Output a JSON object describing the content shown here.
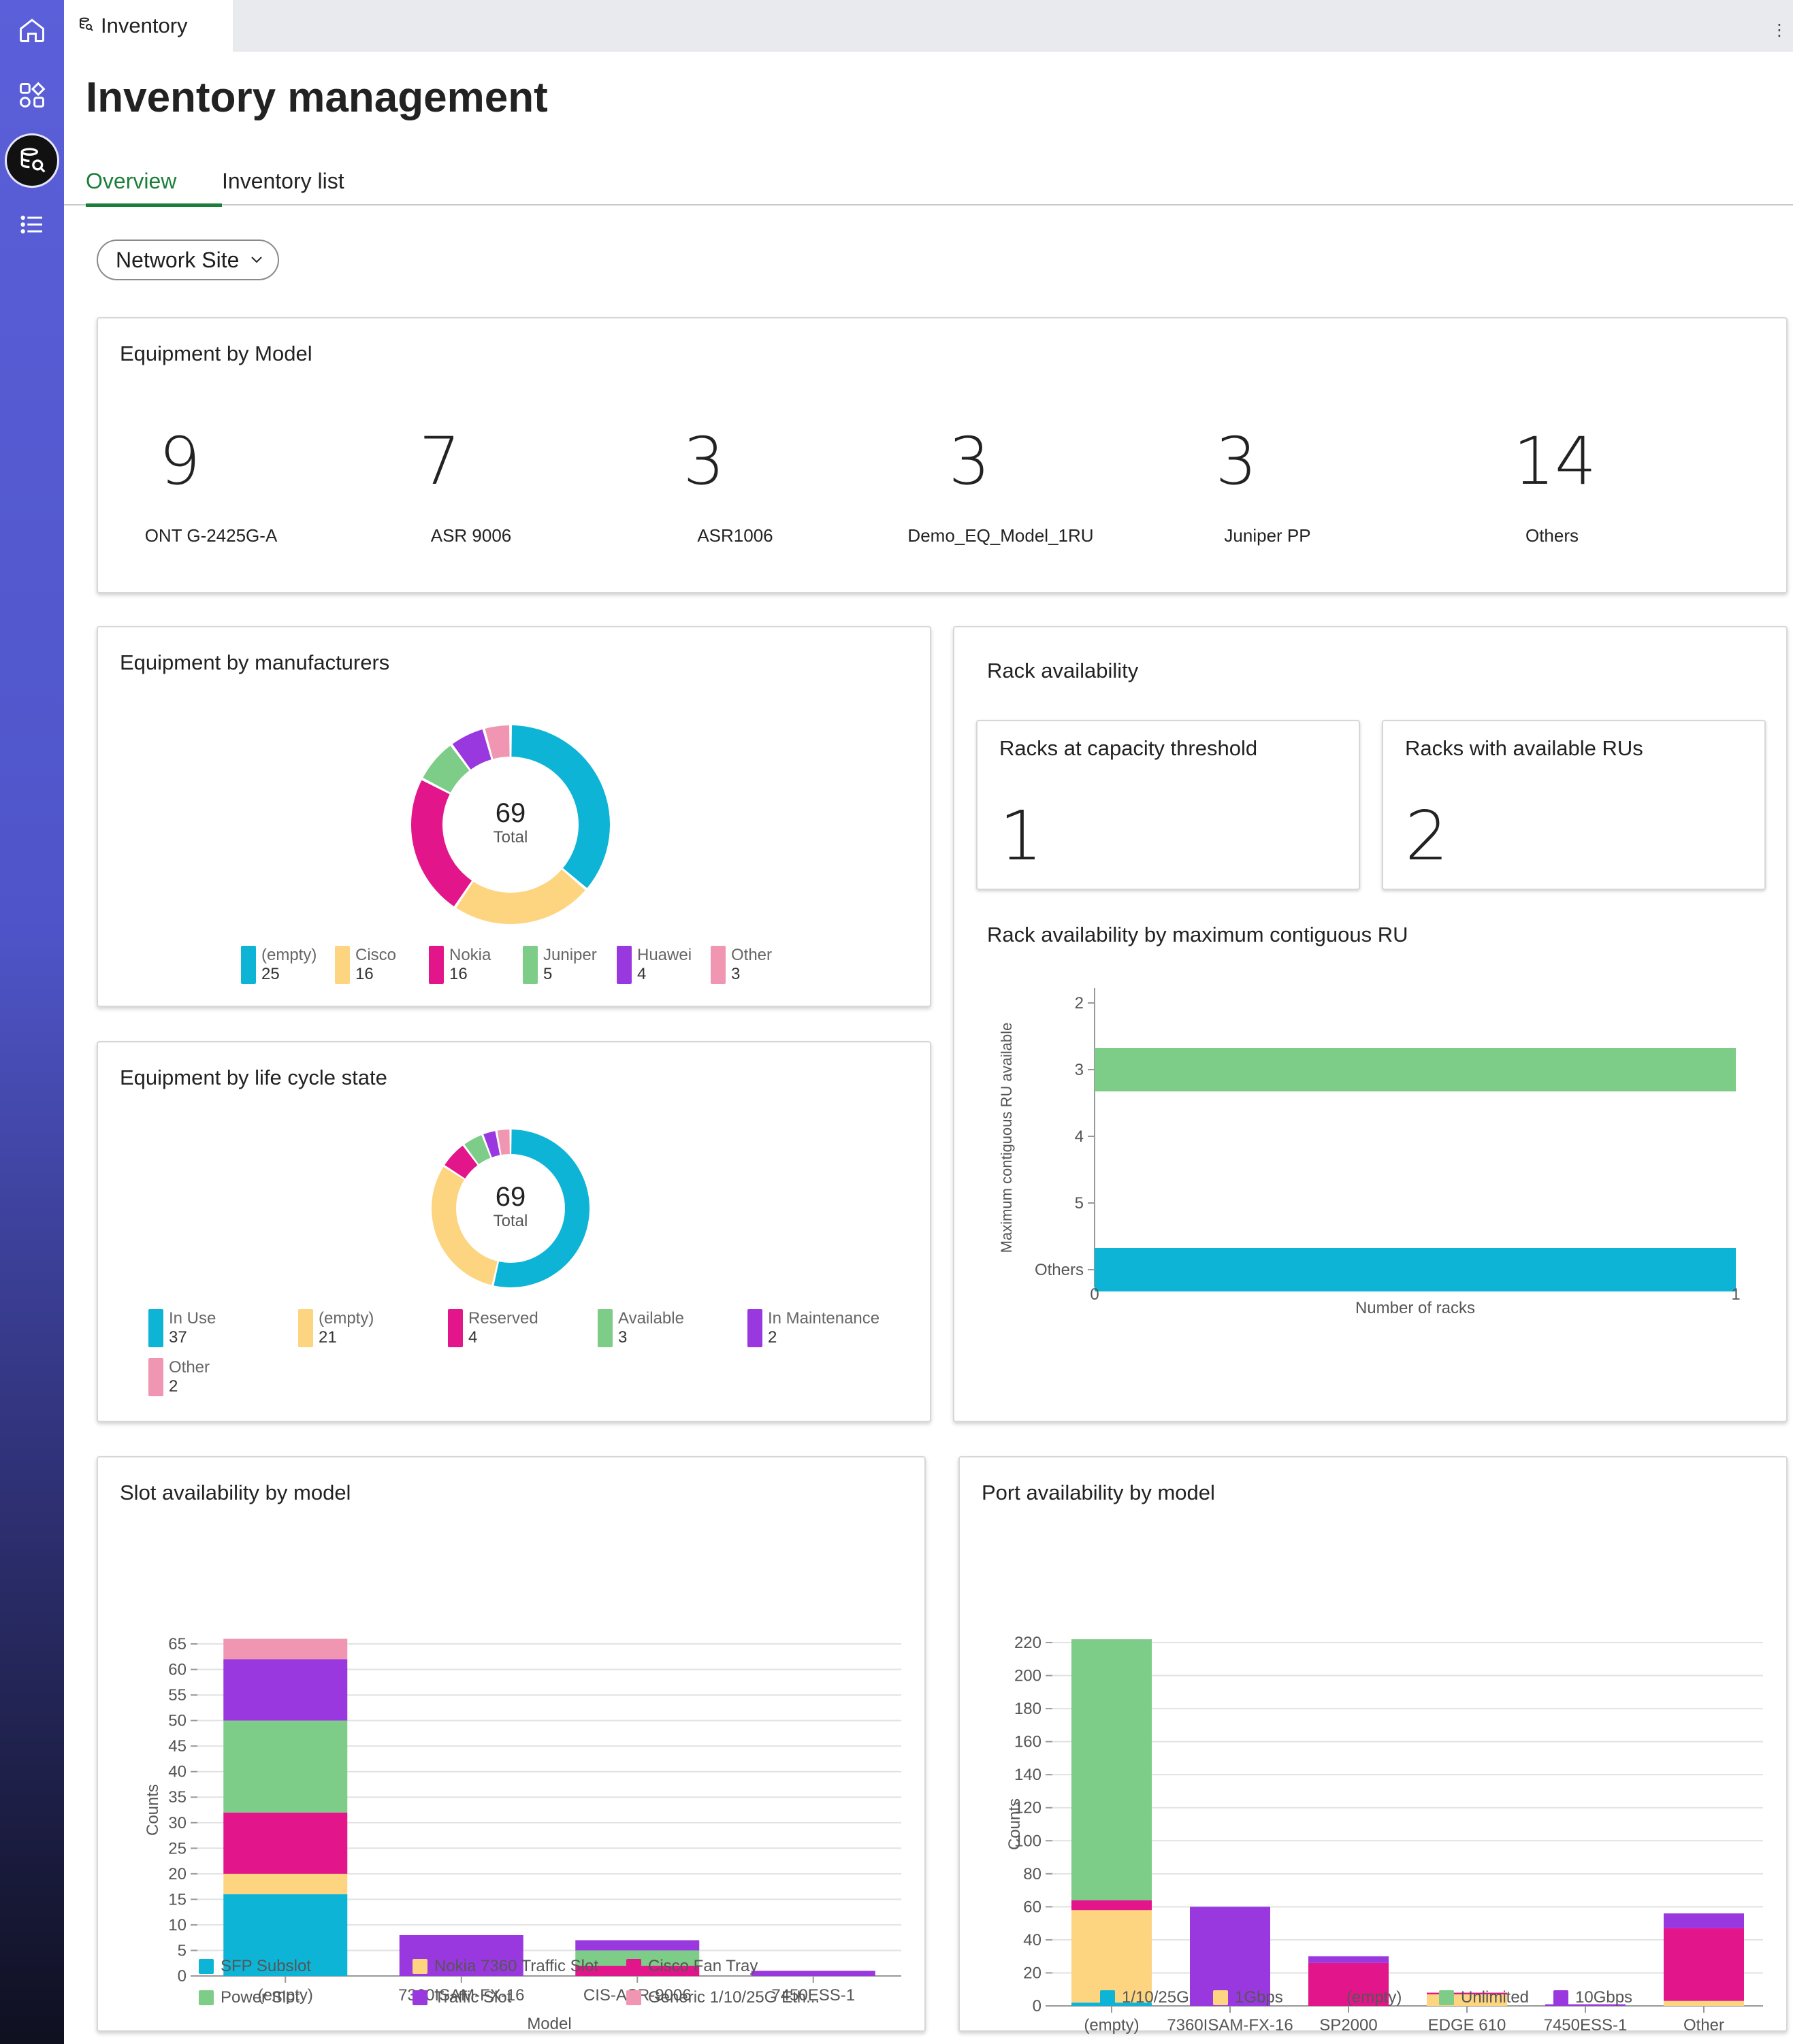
{
  "app_tab": {
    "label": "Inventory"
  },
  "page_title": "Inventory management",
  "tabs": [
    {
      "label": "Overview",
      "active": true
    },
    {
      "label": "Inventory list",
      "active": false
    }
  ],
  "filter": {
    "label": "Network Site"
  },
  "colors": {
    "cyan": "#0db4d6",
    "yellow": "#fdd47f",
    "magenta": "#e2168a",
    "green": "#7dcc87",
    "purple": "#9a38e0",
    "pink": "#f096b2",
    "accent_green": "#1b7f3a"
  },
  "equipment_by_model": {
    "title": "Equipment by Model",
    "items": [
      {
        "count": "9",
        "label": "ONT G-2425G-A"
      },
      {
        "count": "7",
        "label": "ASR 9006"
      },
      {
        "count": "3",
        "label": "ASR1006"
      },
      {
        "count": "3",
        "label": "Demo_EQ_Model_1RU"
      },
      {
        "count": "3",
        "label": "Juniper PP"
      },
      {
        "count": "14",
        "label": "Others"
      }
    ]
  },
  "manufacturers": {
    "title": "Equipment by manufacturers",
    "total": "69",
    "total_label": "Total",
    "legend": [
      {
        "label": "(empty)",
        "value": "25",
        "color": "#0db4d6"
      },
      {
        "label": "Cisco",
        "value": "16",
        "color": "#fdd47f"
      },
      {
        "label": "Nokia",
        "value": "16",
        "color": "#e2168a"
      },
      {
        "label": "Juniper",
        "value": "5",
        "color": "#7dcc87"
      },
      {
        "label": "Huawei",
        "value": "4",
        "color": "#9a38e0"
      },
      {
        "label": "Other",
        "value": "3",
        "color": "#f096b2"
      }
    ]
  },
  "lifecycle": {
    "title": "Equipment by life cycle state",
    "total": "69",
    "total_label": "Total",
    "legend": [
      {
        "label": "In Use",
        "value": "37",
        "color": "#0db4d6"
      },
      {
        "label": "(empty)",
        "value": "21",
        "color": "#fdd47f"
      },
      {
        "label": "Reserved",
        "value": "4",
        "color": "#e2168a"
      },
      {
        "label": "Available",
        "value": "3",
        "color": "#7dcc87"
      },
      {
        "label": "In Maintenance",
        "value": "2",
        "color": "#9a38e0"
      },
      {
        "label": "Other",
        "value": "2",
        "color": "#f096b2"
      }
    ]
  },
  "rack": {
    "title": "Rack availability",
    "capacity": {
      "title": "Racks at capacity threshold",
      "value": "1"
    },
    "available": {
      "title": "Racks with available RUs",
      "value": "2"
    },
    "chart_title": "Rack availability by maximum contiguous RU"
  },
  "slot_title": "Slot availability by model",
  "port_title": "Port availability by model",
  "chart_data": [
    {
      "type": "pie",
      "title": "Equipment by manufacturers",
      "categories": [
        "(empty)",
        "Cisco",
        "Nokia",
        "Juniper",
        "Huawei",
        "Other"
      ],
      "values": [
        25,
        16,
        16,
        5,
        4,
        3
      ],
      "colors": [
        "#0db4d6",
        "#fdd47f",
        "#e2168a",
        "#7dcc87",
        "#9a38e0",
        "#f096b2"
      ]
    },
    {
      "type": "pie",
      "title": "Equipment by life cycle state",
      "categories": [
        "In Use",
        "(empty)",
        "Reserved",
        "Available",
        "In Maintenance",
        "Other"
      ],
      "values": [
        37,
        21,
        4,
        3,
        2,
        2
      ],
      "colors": [
        "#0db4d6",
        "#fdd47f",
        "#e2168a",
        "#7dcc87",
        "#9a38e0",
        "#f096b2"
      ]
    },
    {
      "type": "bar",
      "orientation": "horizontal",
      "title": "Rack availability by maximum contiguous RU",
      "categories": [
        "2",
        "3",
        "4",
        "5",
        "Others"
      ],
      "values": [
        0,
        1,
        0,
        0,
        1
      ],
      "colors": [
        "#7dcc87",
        "#7dcc87",
        "#7dcc87",
        "#7dcc87",
        "#0db4d6"
      ],
      "xlabel": "Number of racks",
      "ylabel": "Maximum contiguous RU available",
      "xlim": [
        0,
        1
      ],
      "xticks": [
        "0",
        "1"
      ]
    },
    {
      "type": "bar",
      "stacked": true,
      "title": "Slot availability by model",
      "categories": [
        "(empty)",
        "7360ISAM-FX-16",
        "CIS-ASR-9006",
        "7450ESS-1"
      ],
      "series": [
        {
          "name": "SFP Subslot",
          "color": "#0db4d6",
          "values": [
            16,
            0,
            0,
            0
          ]
        },
        {
          "name": "Nokia 7360 Traffic Slot",
          "color": "#fdd47f",
          "values": [
            4,
            0,
            0,
            0
          ]
        },
        {
          "name": "Cisco Fan Tray",
          "color": "#e2168a",
          "values": [
            12,
            0,
            2,
            0
          ]
        },
        {
          "name": "Power Slot",
          "color": "#7dcc87",
          "values": [
            18,
            0,
            3,
            0
          ]
        },
        {
          "name": "Traffic Slot",
          "color": "#9a38e0",
          "values": [
            12,
            8,
            2,
            1
          ]
        },
        {
          "name": "Generic 1/10/25G Eth...",
          "color": "#f096b2",
          "values": [
            4,
            0,
            0,
            0
          ]
        }
      ],
      "xlabel": "Model",
      "ylabel": "Counts",
      "ylim": [
        0,
        65
      ],
      "yticks": [
        0,
        5,
        10,
        15,
        20,
        25,
        30,
        35,
        40,
        45,
        50,
        55,
        60,
        65
      ]
    },
    {
      "type": "bar",
      "stacked": true,
      "title": "Port availability by model",
      "categories": [
        "(empty)",
        "7360ISAM-FX-16",
        "SP2000",
        "EDGE 610",
        "7450ESS-1",
        "Other"
      ],
      "series": [
        {
          "name": "1/10/25G",
          "color": "#0db4d6",
          "values": [
            2,
            0,
            0,
            0,
            0,
            0
          ]
        },
        {
          "name": "1Gbps",
          "color": "#fdd47f",
          "values": [
            56,
            0,
            0,
            7,
            0,
            3
          ]
        },
        {
          "name": "(empty)",
          "color": "#e2168a",
          "values": [
            6,
            0,
            26,
            1,
            0,
            44
          ]
        },
        {
          "name": "Unlimited",
          "color": "#7dcc87",
          "values": [
            158,
            0,
            0,
            0,
            0,
            0
          ]
        },
        {
          "name": "10Gbps",
          "color": "#9a38e0",
          "values": [
            0,
            60,
            4,
            0,
            1,
            9
          ]
        }
      ],
      "xlabel": "Model",
      "ylabel": "Counts",
      "ylim": [
        0,
        220
      ],
      "yticks": [
        0,
        20,
        40,
        60,
        80,
        100,
        120,
        140,
        160,
        180,
        200,
        220
      ]
    }
  ]
}
